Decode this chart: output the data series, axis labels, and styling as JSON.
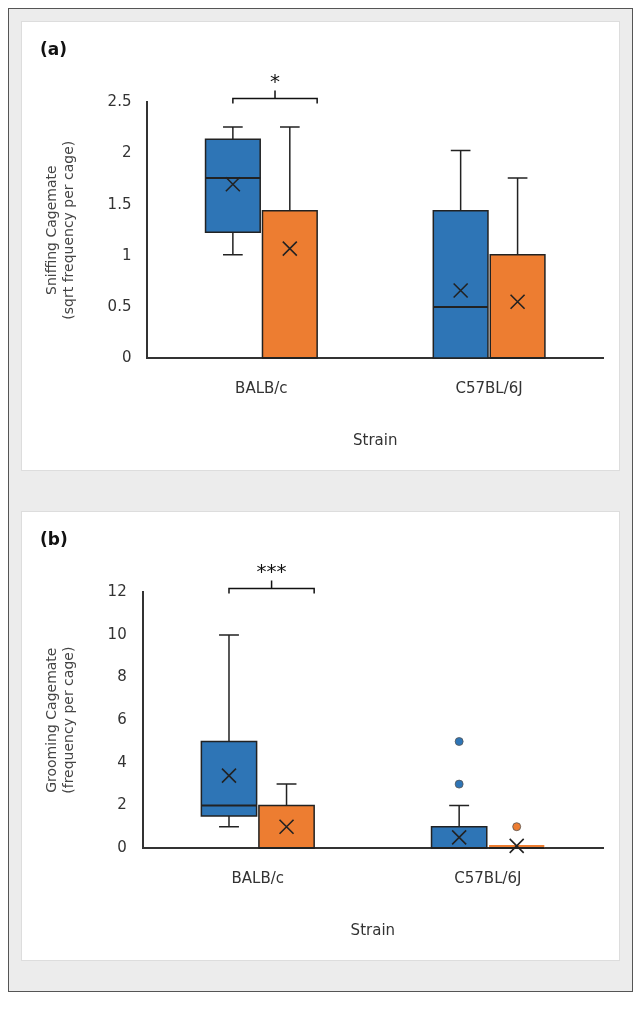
{
  "chart_data": [
    {
      "type": "box",
      "title": "(a)",
      "xlabel": "Strain",
      "ylabel": "Sniffing Cagemate\n(sqrt frequency per cage)",
      "categories": [
        "BALB/c",
        "C57BL/6J"
      ],
      "ylim": [
        0,
        2.5
      ],
      "yticks": [
        0,
        0.5,
        1,
        1.5,
        2,
        2.5
      ],
      "grid": false,
      "legend": false,
      "series": [
        {
          "color": "#2e75b6",
          "boxes": [
            {
              "low": 1.01,
              "q1": 1.23,
              "median": 1.76,
              "q3": 2.14,
              "high": 2.26,
              "mean": 1.7
            },
            {
              "low": 0,
              "q1": 0,
              "median": 0.5,
              "q3": 1.44,
              "high": 2.03,
              "mean": 0.66
            }
          ]
        },
        {
          "color": "#ed7d31",
          "boxes": [
            {
              "low": 0,
              "q1": 0,
              "median": 0,
              "q3": 1.44,
              "high": 2.26,
              "mean": 1.07
            },
            {
              "low": 0,
              "q1": 0,
              "median": 0,
              "q3": 1.01,
              "high": 1.76,
              "mean": 0.55
            }
          ]
        }
      ],
      "annotations": [
        "*"
      ]
    },
    {
      "type": "box",
      "title": "(b)",
      "xlabel": "Strain",
      "ylabel": "Grooming Cagemate\n(frequency per cage)",
      "categories": [
        "BALB/c",
        "C57BL/6J"
      ],
      "ylim": [
        0,
        12
      ],
      "yticks": [
        0,
        2,
        4,
        6,
        8,
        10,
        12
      ],
      "grid": false,
      "legend": false,
      "series": [
        {
          "color": "#2e75b6",
          "boxes": [
            {
              "low": 1,
              "q1": 1.5,
              "median": 2,
              "q3": 5,
              "high": 10,
              "mean": 3.4
            },
            {
              "low": 0,
              "q1": 0,
              "median": 0,
              "q3": 1,
              "high": 2,
              "mean": 0.5,
              "outliers": [
                3,
                5
              ]
            }
          ]
        },
        {
          "color": "#ed7d31",
          "boxes": [
            {
              "low": 0,
              "q1": 0,
              "median": 0,
              "q3": 2,
              "high": 3,
              "mean": 1
            },
            {
              "low": 0,
              "q1": 0,
              "median": 0,
              "q3": 0,
              "high": 0,
              "mean": 0.1,
              "outliers": [
                1
              ]
            }
          ]
        }
      ],
      "annotations": [
        "***"
      ]
    }
  ]
}
